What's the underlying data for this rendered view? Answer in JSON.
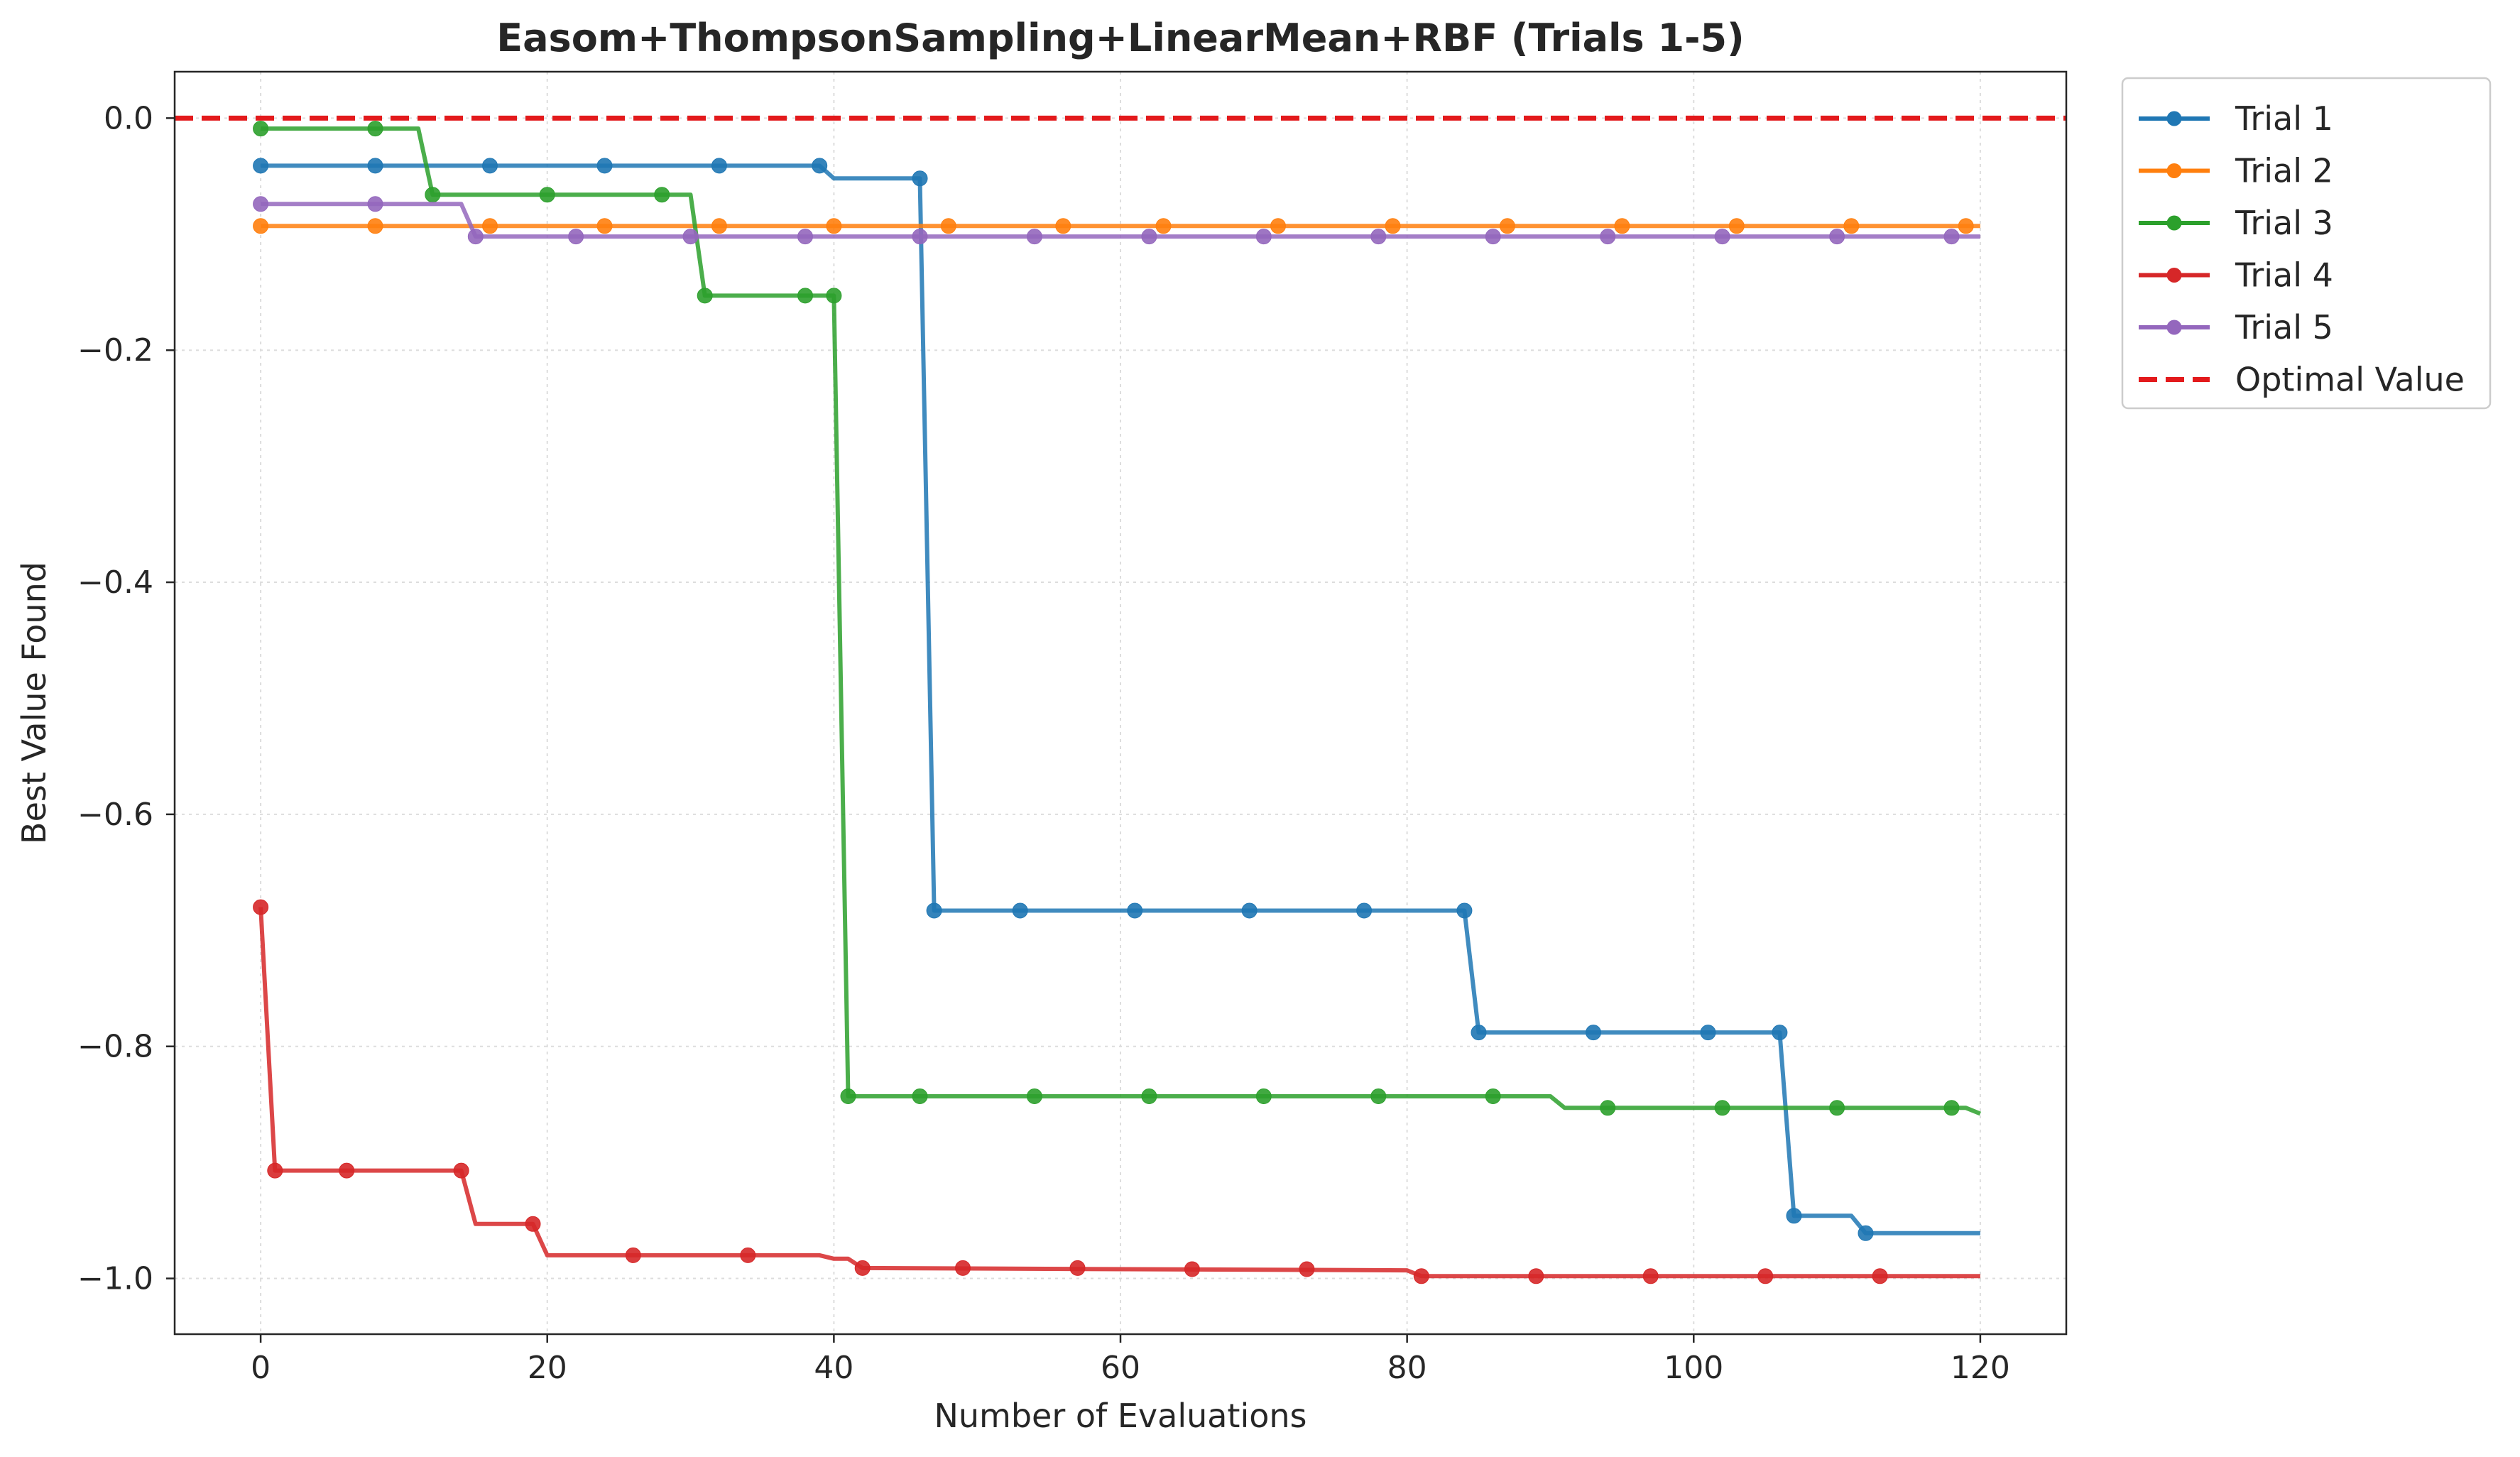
{
  "chart_data": {
    "type": "line",
    "title": "Easom+ThompsonSampling+LinearMean+RBF (Trials 1-5)",
    "xlabel": "Number of Evaluations",
    "ylabel": "Best Value Found",
    "xlim": [
      -6,
      126
    ],
    "ylim": [
      -1.048,
      0.04
    ],
    "xticks": [
      0,
      20,
      40,
      60,
      80,
      100,
      120
    ],
    "xtick_labels": [
      "0",
      "20",
      "40",
      "60",
      "80",
      "100",
      "120"
    ],
    "yticks": [
      0.0,
      -0.2,
      -0.4,
      -0.6,
      -0.8,
      -1.0
    ],
    "ytick_labels": [
      "0.0",
      "−0.2",
      "−0.4",
      "−0.6",
      "−0.8",
      "−1.0"
    ],
    "grid": true,
    "legend_position": "outside top-right",
    "optimal_value": {
      "name": "Optimal Value",
      "y": 0.0,
      "color": "#e31a1c",
      "style": "dashed"
    },
    "series": [
      {
        "name": "Trial 1",
        "color": "#1f77b4",
        "x": [
          0,
          39,
          40,
          46,
          47,
          84,
          85,
          106,
          107,
          111,
          112,
          120
        ],
        "y": [
          -0.041,
          -0.041,
          -0.052,
          -0.052,
          -0.683,
          -0.683,
          -0.788,
          -0.788,
          -0.946,
          -0.946,
          -0.961,
          -0.961
        ],
        "markers": [
          [
            0,
            -0.041
          ],
          [
            8,
            -0.041
          ],
          [
            16,
            -0.041
          ],
          [
            24,
            -0.041
          ],
          [
            32,
            -0.041
          ],
          [
            39,
            -0.041
          ],
          [
            46,
            -0.052
          ],
          [
            47,
            -0.683
          ],
          [
            53,
            -0.683
          ],
          [
            61,
            -0.683
          ],
          [
            69,
            -0.683
          ],
          [
            77,
            -0.683
          ],
          [
            84,
            -0.683
          ],
          [
            85,
            -0.788
          ],
          [
            93,
            -0.788
          ],
          [
            101,
            -0.788
          ],
          [
            106,
            -0.788
          ],
          [
            107,
            -0.946
          ],
          [
            112,
            -0.961
          ]
        ]
      },
      {
        "name": "Trial 2",
        "color": "#ff7f0e",
        "x": [
          0,
          120
        ],
        "y": [
          -0.093,
          -0.093
        ],
        "markers": [
          [
            0,
            -0.093
          ],
          [
            8,
            -0.093
          ],
          [
            16,
            -0.093
          ],
          [
            24,
            -0.093
          ],
          [
            32,
            -0.093
          ],
          [
            40,
            -0.093
          ],
          [
            48,
            -0.093
          ],
          [
            56,
            -0.093
          ],
          [
            63,
            -0.093
          ],
          [
            71,
            -0.093
          ],
          [
            79,
            -0.093
          ],
          [
            87,
            -0.093
          ],
          [
            95,
            -0.093
          ],
          [
            103,
            -0.093
          ],
          [
            111,
            -0.093
          ],
          [
            119,
            -0.093
          ]
        ]
      },
      {
        "name": "Trial 3",
        "color": "#2ca02c",
        "x": [
          0,
          11,
          12,
          30,
          31,
          40,
          41,
          90,
          91,
          119,
          120
        ],
        "y": [
          -0.009,
          -0.009,
          -0.066,
          -0.066,
          -0.153,
          -0.153,
          -0.843,
          -0.843,
          -0.853,
          -0.853,
          -0.858
        ],
        "markers": [
          [
            0,
            -0.009
          ],
          [
            8,
            -0.009
          ],
          [
            12,
            -0.066
          ],
          [
            20,
            -0.066
          ],
          [
            28,
            -0.066
          ],
          [
            31,
            -0.153
          ],
          [
            38,
            -0.153
          ],
          [
            40,
            -0.153
          ],
          [
            41,
            -0.843
          ],
          [
            46,
            -0.843
          ],
          [
            54,
            -0.843
          ],
          [
            62,
            -0.843
          ],
          [
            70,
            -0.843
          ],
          [
            78,
            -0.843
          ],
          [
            86,
            -0.843
          ],
          [
            94,
            -0.853
          ],
          [
            102,
            -0.853
          ],
          [
            110,
            -0.853
          ],
          [
            118,
            -0.853
          ]
        ]
      },
      {
        "name": "Trial 4",
        "color": "#d62728",
        "x": [
          0,
          1,
          14,
          15,
          19,
          20,
          39,
          40,
          41,
          42,
          80,
          81,
          120
        ],
        "y": [
          -0.68,
          -0.907,
          -0.907,
          -0.953,
          -0.953,
          -0.98,
          -0.98,
          -0.983,
          -0.983,
          -0.991,
          -0.993,
          -0.998,
          -0.998
        ],
        "markers": [
          [
            0,
            -0.68
          ],
          [
            1,
            -0.907
          ],
          [
            6,
            -0.907
          ],
          [
            14,
            -0.907
          ],
          [
            19,
            -0.953
          ],
          [
            26,
            -0.98
          ],
          [
            34,
            -0.98
          ],
          [
            42,
            -0.991
          ],
          [
            49,
            -0.991
          ],
          [
            57,
            -0.991
          ],
          [
            65,
            -0.992
          ],
          [
            73,
            -0.992
          ],
          [
            81,
            -0.998
          ],
          [
            89,
            -0.998
          ],
          [
            97,
            -0.998
          ],
          [
            105,
            -0.998
          ],
          [
            113,
            -0.998
          ]
        ]
      },
      {
        "name": "Trial 5",
        "color": "#9467bd",
        "x": [
          0,
          14,
          15,
          120
        ],
        "y": [
          -0.074,
          -0.074,
          -0.102,
          -0.102
        ],
        "markers": [
          [
            0,
            -0.074
          ],
          [
            8,
            -0.074
          ],
          [
            15,
            -0.102
          ],
          [
            22,
            -0.102
          ],
          [
            30,
            -0.102
          ],
          [
            38,
            -0.102
          ],
          [
            46,
            -0.102
          ],
          [
            54,
            -0.102
          ],
          [
            62,
            -0.102
          ],
          [
            70,
            -0.102
          ],
          [
            78,
            -0.102
          ],
          [
            86,
            -0.102
          ],
          [
            94,
            -0.102
          ],
          [
            102,
            -0.102
          ],
          [
            110,
            -0.102
          ],
          [
            118,
            -0.102
          ]
        ]
      }
    ]
  }
}
